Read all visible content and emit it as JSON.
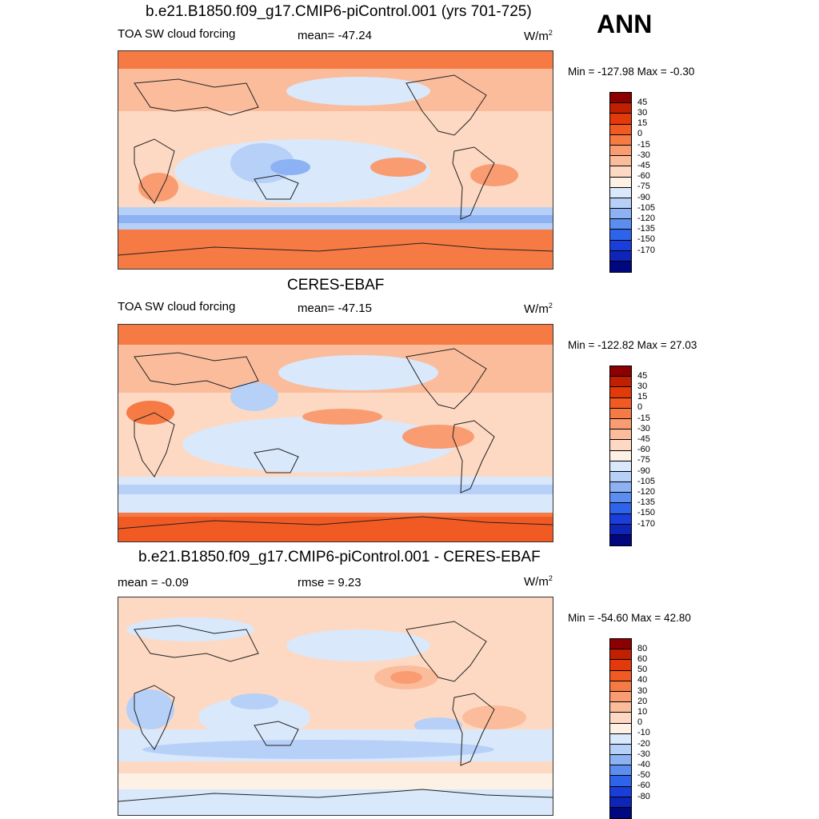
{
  "season": "ANN",
  "units": "W/m",
  "units_exp": "2",
  "panels": [
    {
      "title": "b.e21.B1850.f09_g17.CMIP6-piControl.001 (yrs 701-725)",
      "left_label": "TOA SW cloud forcing",
      "mid_label": "mean= -47.24",
      "minmax": "Min = -127.98 Max =  -0.30",
      "levels": [
        "45",
        "30",
        "15",
        "0",
        "-15",
        "-30",
        "-45",
        "-60",
        "-75",
        "-90",
        "-105",
        "-120",
        "-135",
        "-150",
        "-170"
      ],
      "colors": [
        "#8b0000",
        "#c02000",
        "#e23a0a",
        "#f25a24",
        "#f67a44",
        "#f99c72",
        "#fbbc9c",
        "#fdd9c3",
        "#fdf0e4",
        "#d9e8fb",
        "#b6d0f8",
        "#8cb2f3",
        "#5b8ef0",
        "#2e64ea",
        "#1a3ed9",
        "#0f24b8",
        "#00087f"
      ]
    },
    {
      "title": "CERES-EBAF",
      "left_label": "TOA SW cloud forcing",
      "mid_label": "mean= -47.15",
      "minmax": "Min = -122.82 Max =  27.03",
      "levels": [
        "45",
        "30",
        "15",
        "0",
        "-15",
        "-30",
        "-45",
        "-60",
        "-75",
        "-90",
        "-105",
        "-120",
        "-135",
        "-150",
        "-170"
      ]
    },
    {
      "title": "b.e21.B1850.f09_g17.CMIP6-piControl.001 - CERES-EBAF",
      "left_label": "mean =  -0.09",
      "mid_label": "rmse =   9.23",
      "minmax": "Min = -54.60 Max =  42.80",
      "levels": [
        "80",
        "60",
        "50",
        "40",
        "30",
        "20",
        "10",
        "0",
        "-10",
        "-20",
        "-30",
        "-40",
        "-50",
        "-60",
        "-80"
      ]
    }
  ]
}
